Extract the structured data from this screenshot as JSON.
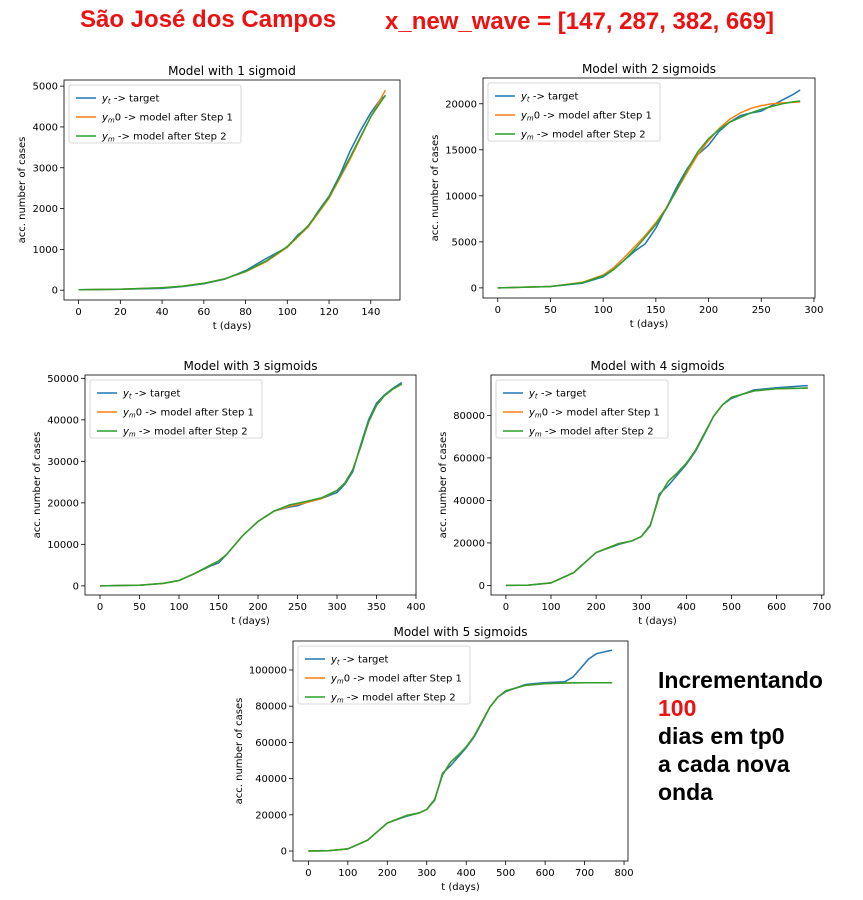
{
  "header": {
    "city": "São José dos Campos",
    "x_new_wave": "x_new_wave = [147, 287, 382, 669]"
  },
  "note": {
    "line1": "Incrementando",
    "line2": "100",
    "line3": "dias em tp0",
    "line4": "a cada nova",
    "line5": "onda"
  },
  "colors": {
    "target": "#1f77b4",
    "model_step1": "#ff7f0e",
    "model_step2": "#2ca02c"
  },
  "chart_data": [
    {
      "type": "line",
      "title": "Model with 1 sigmoid",
      "xlabel": "t (days)",
      "ylabel": "acc. number of cases",
      "xlim": [
        -7,
        154
      ],
      "ylim": [
        -240,
        5150
      ],
      "xticks": [
        0,
        20,
        40,
        60,
        80,
        100,
        120,
        140
      ],
      "yticks": [
        0,
        1000,
        2000,
        3000,
        4000,
        5000
      ],
      "legend": "top-left",
      "series": [
        {
          "name": "y_t -> target",
          "x": [
            0,
            20,
            40,
            50,
            60,
            70,
            80,
            90,
            100,
            105,
            110,
            115,
            120,
            125,
            130,
            135,
            140,
            145,
            147
          ],
          "y": [
            10,
            25,
            45,
            90,
            160,
            270,
            480,
            780,
            1050,
            1350,
            1550,
            1950,
            2300,
            2800,
            3400,
            3900,
            4350,
            4700,
            4750
          ]
        },
        {
          "name": "y_m0 -> model after Step 1",
          "x": [
            0,
            20,
            40,
            50,
            60,
            70,
            80,
            90,
            100,
            110,
            120,
            130,
            140,
            147
          ],
          "y": [
            10,
            25,
            60,
            100,
            170,
            280,
            450,
            700,
            1050,
            1550,
            2250,
            3200,
            4250,
            4900
          ]
        },
        {
          "name": "y_m -> model after Step 2",
          "x": [
            0,
            20,
            40,
            50,
            60,
            70,
            80,
            90,
            100,
            110,
            120,
            130,
            140,
            147
          ],
          "y": [
            10,
            25,
            60,
            100,
            170,
            280,
            460,
            720,
            1070,
            1580,
            2280,
            3250,
            4250,
            4780
          ]
        }
      ]
    },
    {
      "type": "line",
      "title": "Model with 2 sigmoids",
      "xlabel": "t (days)",
      "ylabel": "acc. number of cases",
      "xlim": [
        -14,
        301
      ],
      "ylim": [
        -1100,
        22800
      ],
      "xticks": [
        0,
        50,
        100,
        150,
        200,
        250,
        300
      ],
      "yticks": [
        0,
        5000,
        10000,
        15000,
        20000
      ],
      "legend": "top-left",
      "series": [
        {
          "name": "y_t -> target",
          "x": [
            0,
            50,
            80,
            100,
            110,
            120,
            130,
            140,
            150,
            160,
            170,
            180,
            190,
            200,
            210,
            220,
            230,
            240,
            250,
            260,
            270,
            280,
            287
          ],
          "y": [
            0,
            150,
            500,
            1200,
            2000,
            3000,
            4000,
            4800,
            6500,
            8700,
            11000,
            13000,
            14500,
            15500,
            17000,
            18000,
            18700,
            19000,
            19200,
            19800,
            20400,
            21000,
            21500
          ]
        },
        {
          "name": "y_m0 -> model after Step 1",
          "x": [
            0,
            50,
            80,
            100,
            110,
            120,
            130,
            140,
            150,
            160,
            170,
            180,
            190,
            200,
            210,
            220,
            230,
            240,
            250,
            260,
            270,
            280,
            287
          ],
          "y": [
            0,
            150,
            600,
            1400,
            2200,
            3300,
            4500,
            5700,
            7100,
            8700,
            10600,
            12600,
            14500,
            16000,
            17300,
            18300,
            19000,
            19500,
            19800,
            20000,
            20100,
            20150,
            20200
          ]
        },
        {
          "name": "y_m -> model after Step 2",
          "x": [
            0,
            50,
            80,
            100,
            110,
            120,
            130,
            140,
            150,
            160,
            170,
            180,
            190,
            200,
            210,
            220,
            230,
            240,
            250,
            260,
            270,
            280,
            287
          ],
          "y": [
            0,
            150,
            550,
            1300,
            2000,
            3000,
            4200,
            5500,
            6900,
            8600,
            10700,
            12900,
            14800,
            16200,
            17200,
            18000,
            18500,
            19000,
            19400,
            19700,
            20000,
            20200,
            20300
          ]
        }
      ]
    },
    {
      "type": "line",
      "title": "Model with 3 sigmoids",
      "xlabel": "t (days)",
      "ylabel": "acc. number of cases",
      "xlim": [
        -19,
        400
      ],
      "ylim": [
        -2200,
        50800
      ],
      "xticks": [
        0,
        50,
        100,
        150,
        200,
        250,
        300,
        350,
        400
      ],
      "yticks": [
        0,
        10000,
        20000,
        30000,
        40000,
        50000
      ],
      "legend": "top-left",
      "series": [
        {
          "name": "y_t -> target",
          "x": [
            0,
            50,
            80,
            100,
            120,
            140,
            150,
            160,
            180,
            200,
            220,
            240,
            250,
            260,
            280,
            300,
            310,
            320,
            330,
            340,
            350,
            360,
            370,
            382
          ],
          "y": [
            0,
            150,
            600,
            1300,
            3000,
            4800,
            5500,
            7500,
            12000,
            15500,
            18000,
            19000,
            19300,
            20000,
            21000,
            22500,
            24500,
            27500,
            34000,
            40000,
            44000,
            46000,
            47500,
            49000
          ]
        },
        {
          "name": "y_m0 -> model after Step 1",
          "x": [
            0,
            50,
            80,
            100,
            120,
            140,
            150,
            160,
            180,
            200,
            220,
            240,
            260,
            280,
            300,
            310,
            320,
            330,
            340,
            350,
            360,
            370,
            382
          ],
          "y": [
            0,
            150,
            600,
            1300,
            3000,
            5000,
            6000,
            7500,
            12000,
            15500,
            18000,
            19200,
            20000,
            21000,
            23000,
            24800,
            28000,
            33500,
            39500,
            43500,
            45800,
            47300,
            48600
          ]
        },
        {
          "name": "y_m -> model after Step 2",
          "x": [
            0,
            50,
            80,
            100,
            120,
            140,
            150,
            160,
            180,
            200,
            220,
            240,
            260,
            280,
            300,
            310,
            320,
            330,
            340,
            350,
            360,
            370,
            382
          ],
          "y": [
            0,
            150,
            600,
            1300,
            3000,
            5000,
            6000,
            7500,
            12000,
            15500,
            18000,
            19500,
            20300,
            21200,
            23000,
            24800,
            28000,
            33500,
            39500,
            43500,
            45800,
            47300,
            48600
          ]
        }
      ]
    },
    {
      "type": "line",
      "title": "Model with 4 sigmoids",
      "xlabel": "t (days)",
      "ylabel": "acc. number of cases",
      "xlim": [
        -33,
        705
      ],
      "ylim": [
        -4500,
        99000
      ],
      "xticks": [
        0,
        100,
        200,
        300,
        400,
        500,
        600,
        700
      ],
      "yticks": [
        0,
        20000,
        40000,
        60000,
        80000
      ],
      "legend": "top-left",
      "series": [
        {
          "name": "y_t -> target",
          "x": [
            0,
            50,
            100,
            150,
            200,
            250,
            280,
            300,
            320,
            340,
            360,
            380,
            400,
            420,
            440,
            460,
            480,
            500,
            550,
            600,
            650,
            669
          ],
          "y": [
            0,
            150,
            1200,
            6000,
            15500,
            19300,
            21000,
            23000,
            28000,
            43000,
            47000,
            52000,
            57000,
            63000,
            71000,
            79500,
            85000,
            88000,
            92000,
            93000,
            93800,
            94000
          ]
        },
        {
          "name": "y_m0 -> model after Step 1",
          "x": [
            0,
            50,
            100,
            150,
            200,
            250,
            280,
            300,
            320,
            340,
            360,
            380,
            400,
            420,
            440,
            460,
            480,
            500,
            550,
            600,
            650,
            669
          ],
          "y": [
            0,
            150,
            1200,
            6000,
            15500,
            19700,
            21000,
            23000,
            28500,
            42000,
            49000,
            53000,
            57500,
            63500,
            71500,
            79500,
            85000,
            88500,
            91500,
            92500,
            92800,
            92900
          ]
        },
        {
          "name": "y_m -> model after Step 2",
          "x": [
            0,
            50,
            100,
            150,
            200,
            250,
            280,
            300,
            320,
            340,
            360,
            380,
            400,
            420,
            440,
            460,
            480,
            500,
            550,
            600,
            650,
            669
          ],
          "y": [
            0,
            150,
            1200,
            6000,
            15500,
            19700,
            21000,
            23000,
            28500,
            42000,
            49000,
            53000,
            57500,
            63500,
            71500,
            79500,
            85000,
            88500,
            91500,
            92500,
            92800,
            92900
          ]
        }
      ]
    },
    {
      "type": "line",
      "title": "Model with 5 sigmoids",
      "xlabel": "t (days)",
      "ylabel": "acc. number of cases",
      "xlim": [
        -39,
        810
      ],
      "ylim": [
        -5500,
        116000
      ],
      "xticks": [
        0,
        100,
        200,
        300,
        400,
        500,
        600,
        700,
        800
      ],
      "yticks": [
        0,
        20000,
        40000,
        60000,
        80000,
        100000
      ],
      "legend": "top-left",
      "series": [
        {
          "name": "y_t -> target",
          "x": [
            0,
            50,
            100,
            150,
            200,
            250,
            280,
            300,
            320,
            340,
            360,
            380,
            400,
            420,
            440,
            460,
            480,
            500,
            550,
            600,
            650,
            670,
            690,
            710,
            730,
            750,
            770
          ],
          "y": [
            0,
            150,
            1200,
            6000,
            15500,
            19300,
            21000,
            23000,
            28000,
            43000,
            47000,
            52000,
            57000,
            63000,
            71000,
            79500,
            85000,
            88000,
            92000,
            93000,
            93500,
            96000,
            101000,
            106000,
            109000,
            110000,
            111000
          ]
        },
        {
          "name": "y_m0 -> model after Step 1",
          "x": [
            0,
            50,
            100,
            150,
            200,
            250,
            280,
            300,
            320,
            340,
            360,
            380,
            400,
            420,
            440,
            460,
            480,
            500,
            550,
            600,
            650,
            700,
            770
          ],
          "y": [
            0,
            150,
            1200,
            6000,
            15500,
            19700,
            21000,
            23000,
            28500,
            42000,
            49000,
            53000,
            57500,
            63500,
            71500,
            79500,
            85000,
            88500,
            91500,
            92500,
            92800,
            92900,
            92900
          ]
        },
        {
          "name": "y_m -> model after Step 2",
          "x": [
            0,
            50,
            100,
            150,
            200,
            250,
            280,
            300,
            320,
            340,
            360,
            380,
            400,
            420,
            440,
            460,
            480,
            500,
            550,
            600,
            650,
            700,
            770
          ],
          "y": [
            0,
            150,
            1200,
            6000,
            15500,
            19700,
            21000,
            23000,
            28500,
            42000,
            49000,
            53000,
            57500,
            63500,
            71500,
            79500,
            85000,
            88500,
            91500,
            92500,
            92800,
            92900,
            92900
          ]
        }
      ]
    }
  ]
}
